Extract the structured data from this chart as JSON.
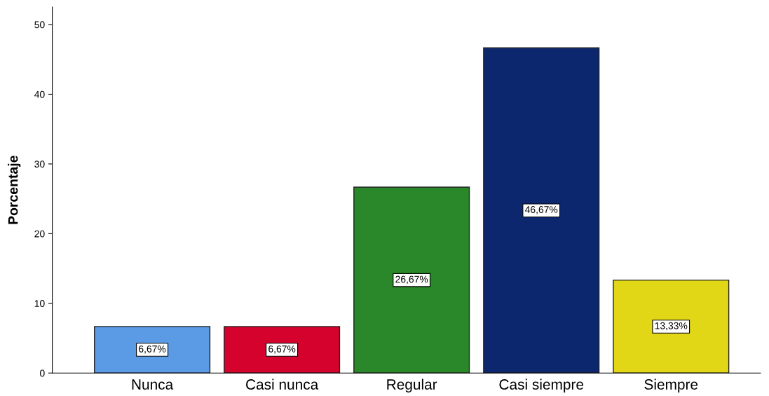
{
  "chart_data": {
    "type": "bar",
    "ylabel": "Porcentaje",
    "categories": [
      "Nunca",
      "Casi nunca",
      "Regular",
      "Casi siempre",
      "Siempre"
    ],
    "values": [
      6.67,
      6.67,
      26.67,
      46.67,
      13.33
    ],
    "value_labels": [
      "6,67%",
      "6,67%",
      "26,67%",
      "46,67%",
      "13,33%"
    ],
    "colors": [
      "#5b9be6",
      "#d4022c",
      "#2a882a",
      "#0d276e",
      "#e2d716"
    ],
    "ylim": [
      0,
      52.5
    ],
    "yticks": [
      0,
      10,
      20,
      30,
      40,
      50
    ],
    "grid": false,
    "legend": false
  }
}
